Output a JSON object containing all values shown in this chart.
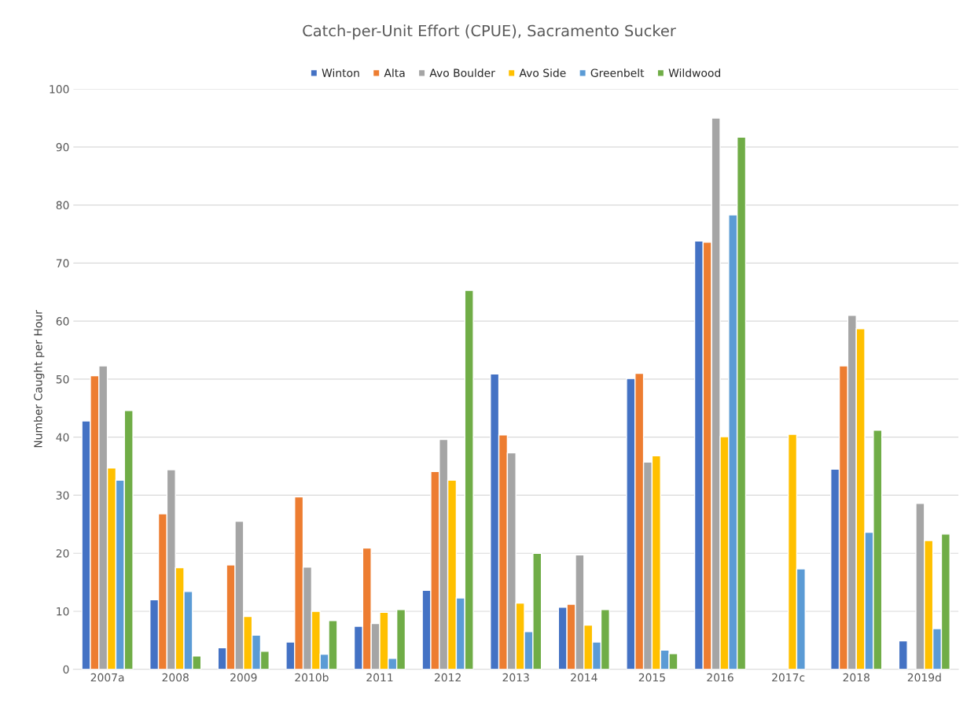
{
  "chart_data": {
    "type": "bar",
    "title": "Catch-per-Unit Effort (CPUE), Sacramento Sucker",
    "ylabel": "Number Caught per Hour",
    "categories": [
      "2007a",
      "2008",
      "2009",
      "2010b",
      "2011",
      "2012",
      "2013",
      "2014",
      "2015",
      "2016",
      "2017c",
      "2018",
      "2019d"
    ],
    "series": [
      {
        "name": "Winton",
        "color": "#4472c4",
        "values": [
          42.8,
          12.0,
          3.7,
          4.7,
          7.4,
          13.6,
          50.9,
          10.7,
          50.1,
          73.8,
          null,
          34.5,
          4.9
        ]
      },
      {
        "name": "Alta",
        "color": "#ed7d31",
        "values": [
          50.6,
          26.8,
          18.0,
          29.7,
          20.9,
          34.1,
          40.4,
          11.2,
          51.0,
          73.6,
          null,
          52.3,
          null
        ]
      },
      {
        "name": "Avo Boulder",
        "color": "#a5a5a5",
        "values": [
          52.3,
          34.4,
          25.5,
          17.6,
          7.9,
          39.6,
          37.3,
          19.7,
          35.7,
          95.0,
          null,
          61.0,
          28.6
        ]
      },
      {
        "name": "Avo Side",
        "color": "#ffc000",
        "values": [
          34.7,
          17.5,
          9.1,
          10.0,
          9.8,
          32.6,
          11.4,
          7.6,
          36.8,
          40.1,
          40.5,
          58.7,
          22.2
        ]
      },
      {
        "name": "Greenbelt",
        "color": "#5b9bd5",
        "values": [
          32.6,
          13.4,
          5.9,
          2.6,
          1.9,
          12.3,
          6.5,
          4.7,
          3.3,
          78.3,
          17.3,
          23.6,
          7.0
        ]
      },
      {
        "name": "Wildwood",
        "color": "#70ad47",
        "values": [
          44.6,
          2.3,
          3.1,
          8.4,
          10.3,
          65.3,
          20.0,
          10.3,
          2.7,
          91.7,
          null,
          41.2,
          23.3
        ]
      }
    ],
    "ylim": [
      0,
      100
    ],
    "yticks": [
      0,
      10,
      20,
      30,
      40,
      50,
      60,
      70,
      80,
      90,
      100
    ],
    "grid": "y",
    "legend": "top"
  }
}
